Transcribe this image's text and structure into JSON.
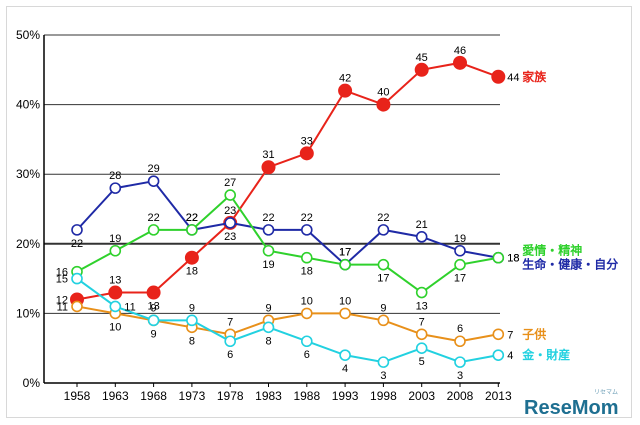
{
  "chart_data": {
    "type": "line",
    "title": "",
    "xlabel": "",
    "ylabel": "",
    "x": [
      "1958",
      "1963",
      "1968",
      "1973",
      "1978",
      "1983",
      "1988",
      "1993",
      "1998",
      "2003",
      "2008",
      "2013"
    ],
    "ylim": [
      0,
      50
    ],
    "y_ticks": [
      "0%",
      "10%",
      "20%",
      "30%",
      "40%",
      "50%"
    ],
    "series": [
      {
        "name": "家族",
        "color": "#e8231a",
        "marker": "filled",
        "values": [
          12,
          13,
          13,
          18,
          23,
          31,
          33,
          42,
          40,
          45,
          46,
          44
        ],
        "label_pos": [
          "l",
          "a",
          "b",
          "b",
          "a",
          "a",
          "a",
          "a",
          "a",
          "a",
          "a",
          "r"
        ]
      },
      {
        "name": "生命・健康・自分",
        "color": "#1f2aa6",
        "marker": "open",
        "values": [
          22,
          28,
          29,
          22,
          23,
          22,
          22,
          17,
          22,
          21,
          19,
          18
        ],
        "label_pos": [
          "b",
          "a",
          "a",
          "a",
          "b",
          "a",
          "a",
          "a",
          "a",
          "a",
          "a",
          "r"
        ]
      },
      {
        "name": "愛情・精神",
        "color": "#2fd12c",
        "marker": "open",
        "values": [
          16,
          19,
          22,
          22,
          27,
          19,
          18,
          17,
          17,
          13,
          17,
          18
        ],
        "label_pos": [
          "l",
          "a",
          "a",
          "a",
          "a",
          "b",
          "b",
          "a",
          "b",
          "b",
          "b",
          "r"
        ]
      },
      {
        "name": "子供",
        "color": "#e8901a",
        "marker": "open",
        "values": [
          11,
          10,
          9,
          8,
          7,
          9,
          10,
          10,
          9,
          7,
          6,
          7
        ],
        "label_pos": [
          "l",
          "b",
          "b",
          "b",
          "a",
          "a",
          "a",
          "a",
          "a",
          "a",
          "a",
          "r"
        ]
      },
      {
        "name": "金・財産",
        "color": "#22d1e0",
        "marker": "open",
        "values": [
          15,
          11,
          9,
          9,
          6,
          8,
          6,
          4,
          3,
          5,
          3,
          4
        ],
        "label_pos": [
          "l",
          "r",
          "a",
          "a",
          "b",
          "b",
          "b",
          "b",
          "b",
          "b",
          "b",
          "r"
        ]
      }
    ]
  },
  "watermark": {
    "text": "ReseMom",
    "small_text": "リセマム"
  }
}
